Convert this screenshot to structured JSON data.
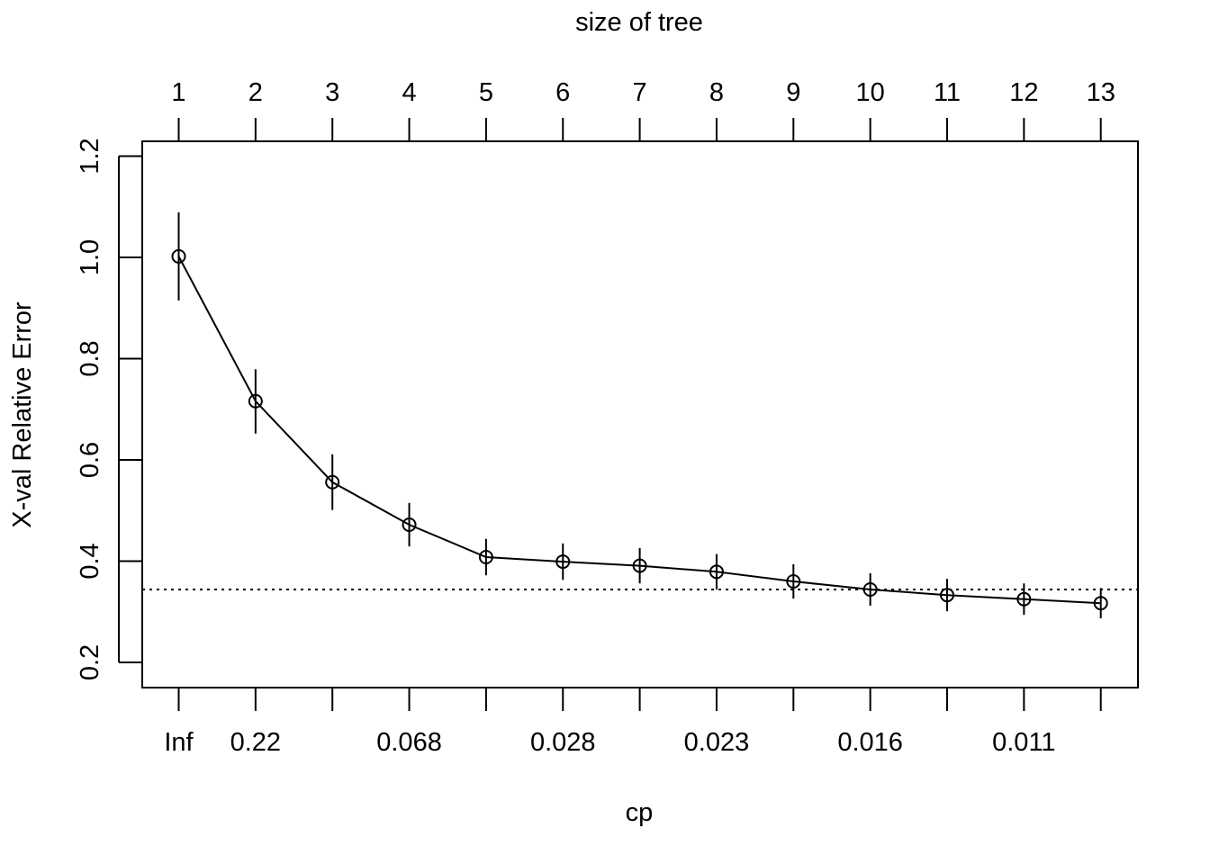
{
  "chart_data": {
    "type": "line",
    "top_axis_label": "size of tree",
    "top_axis_ticks": [
      "1",
      "2",
      "3",
      "4",
      "5",
      "6",
      "7",
      "8",
      "9",
      "10",
      "11",
      "12",
      "13"
    ],
    "bottom_axis_label": "cp",
    "bottom_axis_ticks": [
      {
        "index": 0,
        "label": "Inf"
      },
      {
        "index": 1,
        "label": "0.22"
      },
      {
        "index": 3,
        "label": "0.068"
      },
      {
        "index": 5,
        "label": "0.028"
      },
      {
        "index": 7,
        "label": "0.023"
      },
      {
        "index": 9,
        "label": "0.016"
      },
      {
        "index": 11,
        "label": "0.011"
      }
    ],
    "ylabel": "X-val Relative Error",
    "yticks": [
      "0.2",
      "0.4",
      "0.6",
      "0.8",
      "1.0",
      "1.2"
    ],
    "ylim": [
      0.15,
      1.23
    ],
    "x": [
      1,
      2,
      3,
      4,
      5,
      6,
      7,
      8,
      9,
      10,
      11,
      12,
      13
    ],
    "values": [
      1.002,
      0.716,
      0.556,
      0.472,
      0.408,
      0.399,
      0.391,
      0.379,
      0.36,
      0.344,
      0.333,
      0.325,
      0.317
    ],
    "error_low": [
      0.915,
      0.652,
      0.501,
      0.429,
      0.372,
      0.363,
      0.356,
      0.344,
      0.326,
      0.312,
      0.301,
      0.294,
      0.287
    ],
    "error_high": [
      1.089,
      0.779,
      0.611,
      0.515,
      0.444,
      0.435,
      0.426,
      0.414,
      0.394,
      0.376,
      0.365,
      0.356,
      0.347
    ],
    "reference_line": 0.344,
    "reference_line_style": "dotted",
    "marker": "open-circle",
    "color": "#000000"
  }
}
